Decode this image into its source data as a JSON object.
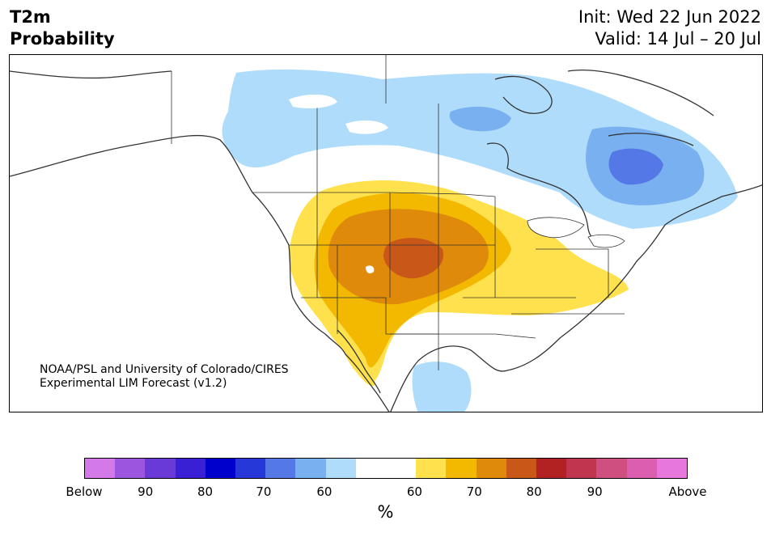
{
  "header": {
    "title_line1": "T2m",
    "title_line2": "Probability",
    "init": "Init: Wed 22 Jun 2022",
    "valid": "Valid: 14 Jul – 20 Jul"
  },
  "credit": {
    "line1": "NOAA/PSL and University of Colorado/CIRES",
    "line2": "Experimental LIM Forecast (v1.2)"
  },
  "colorbar": {
    "colors": [
      "#d47ae8",
      "#9b55de",
      "#6a3ad8",
      "#3a20d4",
      "#0000cc",
      "#2638d8",
      "#5478e6",
      "#78b0f0",
      "#aedcfa",
      "#ffffff",
      "#ffffff",
      "#ffe14d",
      "#f3b800",
      "#df8a0a",
      "#c95818",
      "#b22222",
      "#c0364f",
      "#cf4f80",
      "#db5fae",
      "#e877dc"
    ],
    "ticks": [
      "Below",
      "90",
      "80",
      "70",
      "60",
      "60",
      "70",
      "80",
      "90",
      "Above"
    ],
    "unit": "%"
  },
  "map_colors": {
    "blue_light": "#aedcfa",
    "blue_mid": "#78b0f0",
    "blue_dark": "#5478e6",
    "yellow": "#ffe14d",
    "gold": "#f3b800",
    "orange": "#df8a0a",
    "rust": "#c95818",
    "coast": "#333333"
  }
}
